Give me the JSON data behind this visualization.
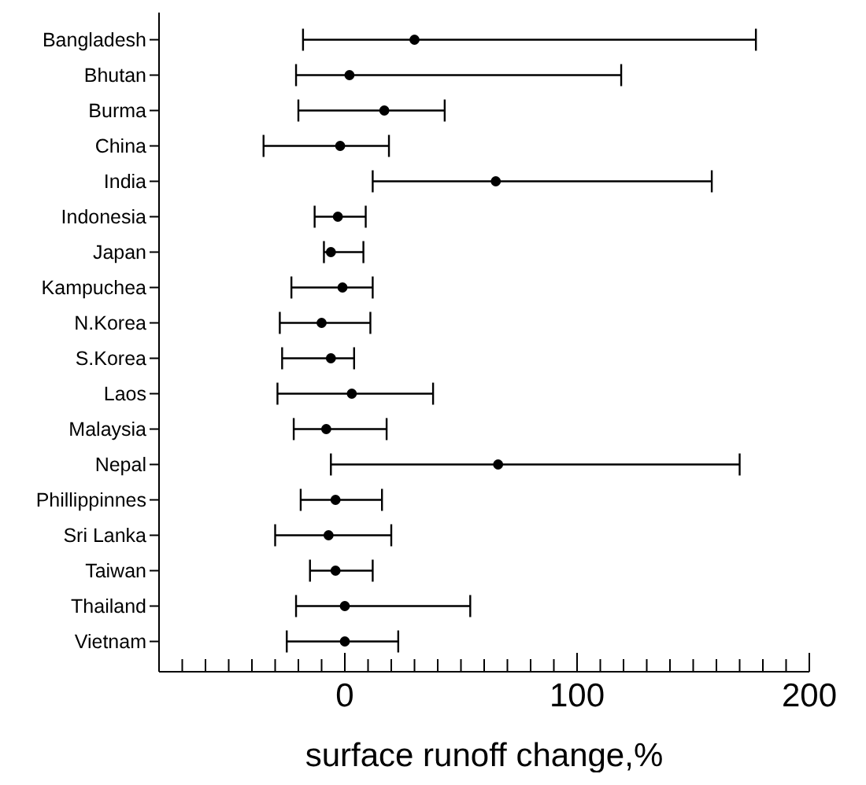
{
  "chart_data": {
    "type": "scatter",
    "orientation": "horizontal",
    "xlabel": "surface runoff change,%",
    "categories": [
      "Bangladesh",
      "Bhutan",
      "Burma",
      "China",
      "India",
      "Indonesia",
      "Japan",
      "Kampuchea",
      "N.Korea",
      "S.Korea",
      "Laos",
      "Malaysia",
      "Nepal",
      "Phillippinnes",
      "Sri Lanka",
      "Taiwan",
      "Thailand",
      "Vietnam"
    ],
    "series": [
      {
        "color": "#000000",
        "values": [
          30,
          2,
          17,
          -2,
          65,
          -3,
          -6,
          -1,
          -10,
          -6,
          3,
          -8,
          66,
          -4,
          -7,
          -4,
          0,
          0
        ],
        "errors": [
          [
            -18,
            177
          ],
          [
            -21,
            119
          ],
          [
            -20,
            43
          ],
          [
            -35,
            19
          ],
          [
            12,
            158
          ],
          [
            -13,
            9
          ],
          [
            -9,
            8
          ],
          [
            -23,
            12
          ],
          [
            -28,
            11
          ],
          [
            -27,
            4
          ],
          [
            -29,
            38
          ],
          [
            -22,
            18
          ],
          [
            -6,
            170
          ],
          [
            -19,
            16
          ],
          [
            -30,
            20
          ],
          [
            -15,
            12
          ],
          [
            -21,
            54
          ],
          [
            -25,
            23
          ]
        ]
      }
    ],
    "xlim": [
      -80,
      200
    ],
    "xticks": [
      {
        "value": -70,
        "label": null
      },
      {
        "value": -60,
        "label": null
      },
      {
        "value": -50,
        "label": null
      },
      {
        "value": -40,
        "label": null
      },
      {
        "value": -30,
        "label": null
      },
      {
        "value": -20,
        "label": null
      },
      {
        "value": -10,
        "label": null
      },
      0,
      {
        "value": 10,
        "label": null
      },
      {
        "value": 20,
        "label": null
      },
      {
        "value": 30,
        "label": null
      },
      {
        "value": 40,
        "label": null
      },
      {
        "value": 50,
        "label": null
      },
      {
        "value": 60,
        "label": null
      },
      {
        "value": 70,
        "label": null
      },
      {
        "value": 80,
        "label": null
      },
      {
        "value": 90,
        "label": null
      },
      100,
      {
        "value": 110,
        "label": null
      },
      {
        "value": 120,
        "label": null
      },
      {
        "value": 130,
        "label": null
      },
      {
        "value": 140,
        "label": null
      },
      {
        "value": 150,
        "label": null
      },
      {
        "value": 160,
        "label": null
      },
      {
        "value": 170,
        "label": null
      },
      {
        "value": 180,
        "label": null
      },
      {
        "value": 190,
        "label": null
      },
      200
    ],
    "marker": "circle",
    "grid": false,
    "legend": false
  }
}
